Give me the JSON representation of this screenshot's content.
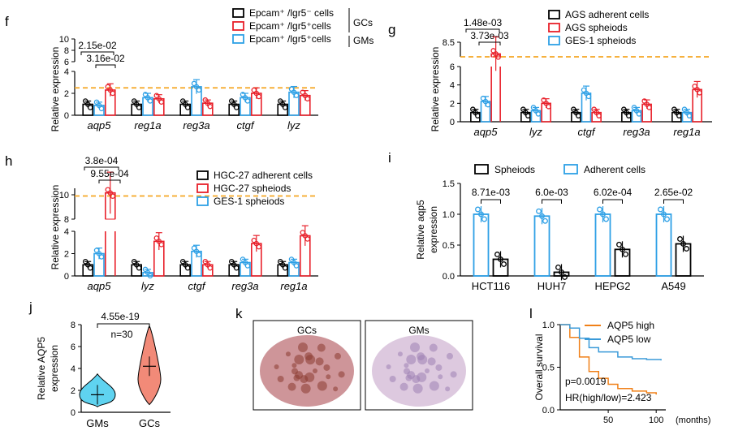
{
  "colors": {
    "black": "#000000",
    "red": "#e8202a",
    "blue": "#2ea0e6",
    "orange": "#f5a623",
    "cutoff": "#f5a623",
    "violet_gm": "#5fd3f0",
    "violet_gc": "#f28a78",
    "km_high": "#f08018",
    "km_low": "#3a9ad9"
  },
  "panels": {
    "f": {
      "letter": "f",
      "ylabel": "Relative expression",
      "ticks_low": [
        "0",
        "2",
        "4"
      ],
      "ticks_high": [
        "6",
        "8",
        "10"
      ],
      "legend": [
        {
          "label": "Epcam⁺ /lgr5⁻ cells",
          "color": "black"
        },
        {
          "label": "Epcam⁺ /lgr5⁺cells",
          "color": "red"
        },
        {
          "label": "Epcam⁺ /lgr5⁺cells",
          "color": "blue"
        }
      ],
      "groups": [
        "GCs",
        "GMs"
      ],
      "pvalues": [
        "2.15e-02",
        "3.16e-02"
      ]
    },
    "g": {
      "letter": "g",
      "ylabel": "Relative expression",
      "ticks_low": [
        "0",
        "2",
        "4",
        "6"
      ],
      "ticks_high": [
        "8.5"
      ],
      "legend": [
        {
          "label": "AGS adherent cells",
          "color": "black"
        },
        {
          "label": "AGS spheiods",
          "color": "red"
        },
        {
          "label": "GES-1 spheiods",
          "color": "blue"
        }
      ],
      "pvalues": [
        "1.48e-03",
        "3.73e-03"
      ]
    },
    "h": {
      "letter": "h",
      "ylabel": "Relative expression",
      "ticks_low": [
        "0",
        "2",
        "4"
      ],
      "ticks_high": [
        "8",
        "10"
      ],
      "legend": [
        {
          "label": "HGC-27 adherent cells",
          "color": "black"
        },
        {
          "label": "HGC-27 spheiods",
          "color": "red"
        },
        {
          "label": "GES-1 spheiods",
          "color": "blue"
        }
      ],
      "pvalues": [
        "3.8e-04",
        "9.55e-04"
      ]
    },
    "i": {
      "letter": "i",
      "ylabel_line1": "Relative",
      "ylabel_italic": "aqp5",
      "ylabel_line2": "expression",
      "ticks": [
        "0.0",
        "0.5",
        "1.0",
        "1.5"
      ],
      "legend": [
        {
          "label": "Spheiods",
          "color": "black"
        },
        {
          "label": "Adherent cells",
          "color": "blue"
        }
      ],
      "pvalues": [
        "8.71e-03",
        "6.0e-03",
        "6.02e-04",
        "2.65e-02"
      ]
    },
    "j": {
      "letter": "j",
      "ylabel_line1": "Relative AQP5",
      "ylabel_line2": "expression",
      "ticks": [
        "0",
        "2",
        "4",
        "6",
        "8"
      ],
      "pvalue": "4.55e-19",
      "n": "n=30"
    },
    "k": {
      "letter": "k",
      "labels": [
        "GCs",
        "GMs"
      ]
    },
    "l": {
      "letter": "l",
      "ylabel": "Overall survival",
      "ticks": [
        "0.0",
        "0.5",
        "1.0"
      ],
      "xticks": [
        "50",
        "100"
      ],
      "xunit": "(months)",
      "legend": [
        {
          "label": "AQP5 high",
          "color": "km_high"
        },
        {
          "label": "AQP5 low",
          "color": "km_low"
        }
      ],
      "pvalue": "p=0.0019",
      "hr": "HR(high/low)=2.423"
    }
  },
  "chart_data": [
    {
      "panel": "f",
      "type": "bar",
      "categories": [
        "aqp5",
        "reg1a",
        "reg3a",
        "ctgf",
        "lyz"
      ],
      "series": [
        {
          "name": "Epcam⁺ /lgr5⁻ cells",
          "values": [
            1.0,
            1.0,
            1.0,
            1.0,
            1.0
          ]
        },
        {
          "name": "Epcam⁺ /lgr5⁺cells",
          "values": [
            2.3,
            1.5,
            1.1,
            2.0,
            1.8
          ]
        },
        {
          "name": "Epcam⁺ /lgr5⁺cells",
          "values": [
            0.9,
            1.6,
            2.6,
            1.6,
            2.1
          ]
        }
      ],
      "cutoff": 2.5,
      "ylim": [
        0,
        10
      ]
    },
    {
      "panel": "g",
      "type": "bar",
      "categories": [
        "aqp5",
        "lyz",
        "ctgf",
        "reg3a",
        "reg1a"
      ],
      "series": [
        {
          "name": "AGS adherent cells",
          "values": [
            1.0,
            1.0,
            1.0,
            1.0,
            1.0
          ]
        },
        {
          "name": "AGS spheiods",
          "values": [
            7.7,
            2.0,
            1.0,
            1.9,
            3.5
          ]
        },
        {
          "name": "GES-1 spheiods",
          "values": [
            2.2,
            1.2,
            3.1,
            1.2,
            1.0
          ]
        }
      ],
      "cutoff": 7.5,
      "ylim": [
        0,
        8.5
      ]
    },
    {
      "panel": "h",
      "type": "bar",
      "categories": [
        "aqp5",
        "lyz",
        "ctgf",
        "reg3a",
        "reg1a"
      ],
      "series": [
        {
          "name": "HGC-27 adherent cells",
          "values": [
            1.0,
            1.0,
            1.0,
            1.0,
            1.0
          ]
        },
        {
          "name": "HGC-27 spheiods",
          "values": [
            9.7,
            3.1,
            1.0,
            2.9,
            3.6
          ]
        },
        {
          "name": "GES-1 spheiods",
          "values": [
            2.0,
            0.3,
            2.2,
            1.2,
            1.2
          ]
        }
      ],
      "cutoff": 9.5,
      "ylim": [
        0,
        10
      ]
    },
    {
      "panel": "i",
      "type": "bar",
      "categories": [
        "HCT116",
        "HUH7",
        "HEPG2",
        "A549"
      ],
      "series": [
        {
          "name": "Spheiods",
          "values": [
            0.27,
            0.06,
            0.43,
            0.52
          ]
        },
        {
          "name": "Adherent cells",
          "values": [
            1.0,
            0.97,
            1.0,
            1.0
          ]
        }
      ],
      "ylim": [
        0,
        1.5
      ]
    },
    {
      "panel": "j",
      "type": "scatter",
      "categories": [
        "GMs",
        "GCs"
      ],
      "medians": [
        1.6,
        4.2
      ],
      "ranges": [
        [
          0.5,
          3.5
        ],
        [
          0.7,
          7.9
        ]
      ],
      "ylim": [
        0,
        8
      ]
    },
    {
      "panel": "l",
      "type": "line",
      "x_max": 110,
      "series": [
        {
          "name": "AQP5 high",
          "points": [
            [
              0,
              1.0
            ],
            [
              10,
              0.85
            ],
            [
              20,
              0.62
            ],
            [
              30,
              0.45
            ],
            [
              40,
              0.37
            ],
            [
              50,
              0.3
            ],
            [
              60,
              0.25
            ],
            [
              75,
              0.22
            ],
            [
              90,
              0.2
            ],
            [
              100,
              0.18
            ]
          ]
        },
        {
          "name": "AQP5 low",
          "points": [
            [
              0,
              1.0
            ],
            [
              10,
              0.96
            ],
            [
              20,
              0.84
            ],
            [
              30,
              0.73
            ],
            [
              40,
              0.68
            ],
            [
              60,
              0.62
            ],
            [
              75,
              0.6
            ],
            [
              90,
              0.59
            ],
            [
              105,
              0.58
            ]
          ]
        }
      ],
      "ylim": [
        0,
        1.0
      ]
    }
  ]
}
